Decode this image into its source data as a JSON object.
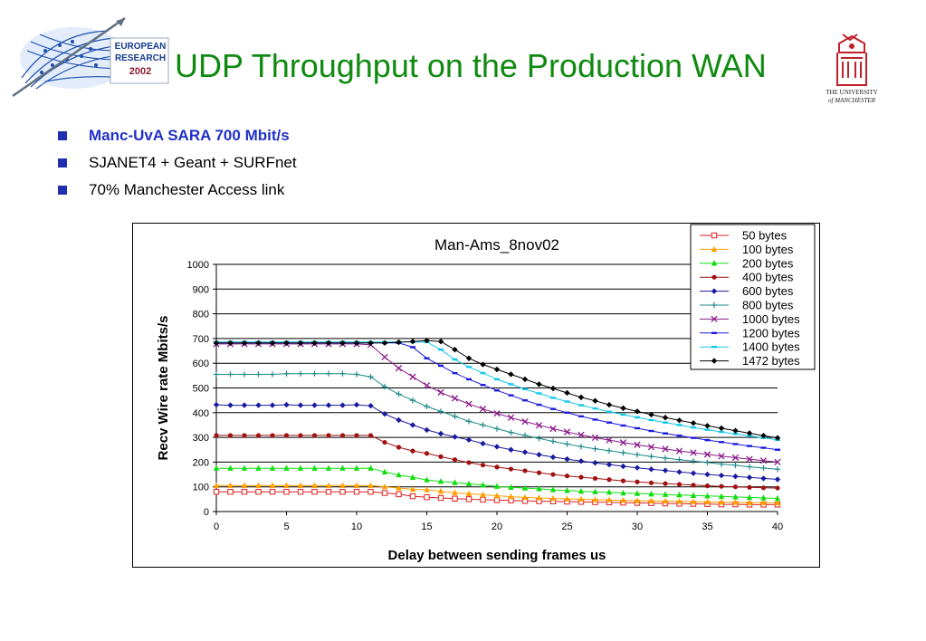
{
  "slide": {
    "title": "UDP Throughput on the Production WAN",
    "bullets": [
      {
        "text": "Manc-UvA SARA 700 Mbit/s",
        "highlight": true
      },
      {
        "text": "SJANET4 + Geant + SURFnet",
        "highlight": false
      },
      {
        "text": "70% Manchester Access link",
        "highlight": false
      }
    ],
    "colors": {
      "title": "#108a10",
      "bullet_square": "#1f2fb0",
      "highlight_text": "#2030c8"
    }
  },
  "logos": {
    "european_research": {
      "line1": "EUROPEAN",
      "line2": "RESEARCH",
      "year": "2002"
    },
    "university": {
      "line1": "THE UNIVERSITY",
      "line2": "of MANCHESTER"
    }
  },
  "chart_data": {
    "type": "line",
    "title": "Man-Ams_8nov02",
    "xlabel": "Delay between sending frames us",
    "ylabel": "Recv Wire rate Mbits/s",
    "xlim": [
      0,
      40
    ],
    "ylim": [
      0,
      1000
    ],
    "xticks": [
      0,
      5,
      10,
      15,
      20,
      25,
      30,
      35,
      40
    ],
    "yticks": [
      0,
      100,
      200,
      300,
      400,
      500,
      600,
      700,
      800,
      900,
      1000
    ],
    "grid": "horizontal",
    "legend_position": "top-right",
    "x": [
      0,
      1,
      2,
      3,
      4,
      5,
      6,
      7,
      8,
      9,
      10,
      11,
      12,
      13,
      14,
      15,
      16,
      17,
      18,
      19,
      20,
      21,
      22,
      23,
      24,
      25,
      26,
      27,
      28,
      29,
      30,
      31,
      32,
      33,
      34,
      35,
      36,
      37,
      38,
      39,
      40
    ],
    "series": [
      {
        "name": "50 bytes",
        "color": "#e02020",
        "marker": "square-open",
        "values": [
          80,
          80,
          80,
          80,
          80,
          80,
          80,
          80,
          80,
          80,
          80,
          80,
          75,
          70,
          62,
          58,
          55,
          52,
          50,
          48,
          46,
          45,
          43,
          42,
          41,
          40,
          39,
          38,
          37,
          36,
          35,
          34,
          33,
          32,
          31,
          30,
          29,
          29,
          28,
          28,
          28
        ]
      },
      {
        "name": "100 bytes",
        "color": "#ffa000",
        "marker": "triangle",
        "values": [
          105,
          105,
          105,
          105,
          105,
          105,
          105,
          105,
          105,
          105,
          105,
          105,
          100,
          95,
          90,
          88,
          82,
          76,
          72,
          68,
          64,
          60,
          57,
          55,
          53,
          51,
          50,
          48,
          47,
          45,
          44,
          43,
          42,
          41,
          40,
          39,
          38,
          37,
          36,
          36,
          35
        ]
      },
      {
        "name": "200 bytes",
        "color": "#10dd10",
        "marker": "triangle",
        "values": [
          175,
          175,
          175,
          175,
          175,
          175,
          175,
          175,
          175,
          175,
          175,
          175,
          160,
          148,
          138,
          128,
          122,
          117,
          112,
          107,
          102,
          98,
          95,
          92,
          88,
          85,
          82,
          80,
          78,
          75,
          73,
          71,
          69,
          67,
          65,
          63,
          61,
          59,
          57,
          55,
          53
        ]
      },
      {
        "name": "400 bytes",
        "color": "#a01010",
        "marker": "circle",
        "values": [
          308,
          308,
          308,
          308,
          308,
          308,
          308,
          308,
          308,
          308,
          308,
          308,
          280,
          260,
          245,
          235,
          222,
          210,
          198,
          188,
          180,
          172,
          165,
          157,
          150,
          144,
          139,
          134,
          129,
          124,
          120,
          116,
          113,
          110,
          107,
          104,
          102,
          100,
          98,
          96,
          95
        ]
      },
      {
        "name": "600 bytes",
        "color": "#1a1aa0",
        "marker": "diamond",
        "values": [
          432,
          430,
          430,
          430,
          430,
          432,
          430,
          430,
          430,
          430,
          432,
          428,
          395,
          370,
          350,
          330,
          315,
          302,
          290,
          275,
          262,
          250,
          240,
          230,
          220,
          212,
          204,
          197,
          190,
          183,
          177,
          171,
          166,
          160,
          155,
          150,
          146,
          142,
          138,
          134,
          130
        ]
      },
      {
        "name": "800 bytes",
        "color": "#208a8a",
        "marker": "plus",
        "values": [
          555,
          555,
          555,
          555,
          555,
          558,
          558,
          558,
          558,
          558,
          555,
          545,
          505,
          475,
          450,
          425,
          405,
          385,
          365,
          350,
          335,
          320,
          308,
          296,
          284,
          273,
          263,
          254,
          246,
          238,
          230,
          223,
          216,
          210,
          204,
          198,
          192,
          187,
          181,
          176,
          171
        ]
      },
      {
        "name": "1000 bytes",
        "color": "#8a1a8a",
        "marker": "x",
        "values": [
          678,
          678,
          678,
          678,
          678,
          678,
          678,
          678,
          678,
          678,
          678,
          675,
          625,
          580,
          545,
          510,
          482,
          458,
          435,
          415,
          397,
          380,
          364,
          349,
          335,
          322,
          310,
          299,
          289,
          279,
          270,
          261,
          253,
          245,
          238,
          231,
          224,
          218,
          212,
          206,
          200
        ]
      },
      {
        "name": "1200 bytes",
        "color": "#1a1ae0",
        "marker": "dash",
        "values": [
          682,
          682,
          682,
          682,
          682,
          682,
          682,
          682,
          682,
          682,
          682,
          682,
          682,
          682,
          665,
          620,
          590,
          560,
          535,
          512,
          490,
          470,
          450,
          432,
          415,
          400,
          385,
          372,
          360,
          348,
          337,
          326,
          316,
          307,
          298,
          289,
          281,
          273,
          265,
          258,
          250
        ]
      },
      {
        "name": "1400 bytes",
        "color": "#10c8e8",
        "marker": "dash",
        "values": [
          686,
          686,
          686,
          686,
          686,
          686,
          686,
          686,
          686,
          686,
          686,
          686,
          686,
          686,
          686,
          686,
          655,
          615,
          585,
          560,
          535,
          515,
          495,
          478,
          460,
          445,
          430,
          417,
          404,
          392,
          381,
          370,
          360,
          350,
          340,
          331,
          322,
          314,
          306,
          298,
          290
        ]
      },
      {
        "name": "1472 bytes",
        "color": "#000000",
        "marker": "diamond",
        "values": [
          682,
          682,
          682,
          682,
          682,
          682,
          682,
          682,
          682,
          682,
          682,
          682,
          682,
          685,
          688,
          692,
          688,
          655,
          620,
          595,
          575,
          555,
          535,
          515,
          498,
          480,
          462,
          448,
          432,
          418,
          405,
          392,
          380,
          369,
          358,
          347,
          337,
          327,
          317,
          307,
          298
        ]
      }
    ]
  }
}
